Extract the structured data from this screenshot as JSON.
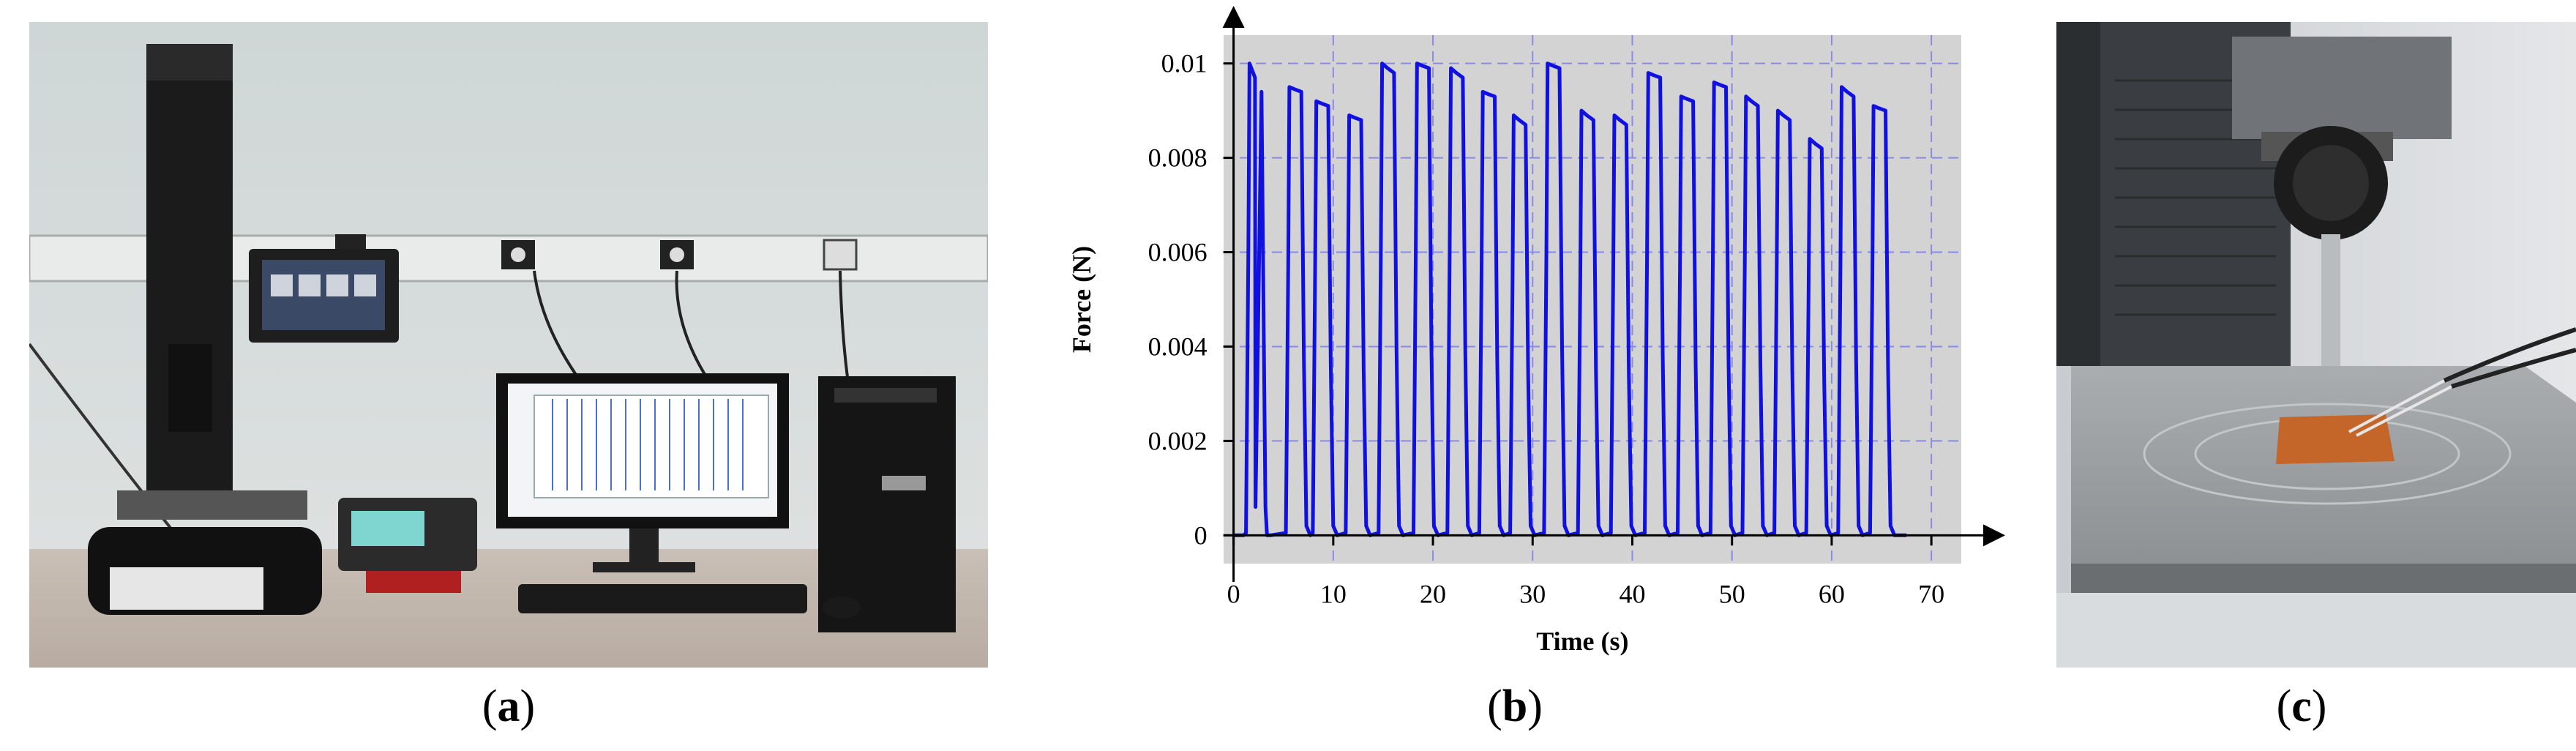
{
  "panels": {
    "a": {
      "caption_open": "(",
      "caption_letter": "a",
      "caption_close": ")"
    },
    "b": {
      "caption_open": "(",
      "caption_letter": "b",
      "caption_close": ")"
    },
    "c": {
      "caption_open": "(",
      "caption_letter": "c",
      "caption_close": ")"
    }
  },
  "colors": {
    "plot_background": "#d3d3d3",
    "grid": "#8a8ae6",
    "series": "#1010e0",
    "axes": "#000000"
  },
  "chart_data": {
    "type": "line",
    "title": "",
    "xlabel": "Time (s)",
    "ylabel": "Force (N)",
    "xlim": [
      -1,
      73
    ],
    "ylim": [
      -0.0006,
      0.0106
    ],
    "xticks": [
      0,
      10,
      20,
      30,
      40,
      50,
      60,
      70
    ],
    "xtick_labels": [
      "0",
      "10",
      "20",
      "30",
      "40",
      "50",
      "60",
      "70"
    ],
    "yticks": [
      0,
      0.002,
      0.004,
      0.006,
      0.008,
      0.01
    ],
    "ytick_labels": [
      "0",
      "0.002",
      "0.004",
      "0.006",
      "0.008",
      "0.01"
    ],
    "grid": true,
    "legend": "none",
    "series": [
      {
        "pulses": [
          {
            "t": 1.6,
            "peak": 0.01,
            "end": 0.0094
          },
          {
            "t": 5.6,
            "peak": 0.0095,
            "end": 0.0094
          },
          {
            "t": 8.3,
            "peak": 0.0092,
            "end": 0.0091
          },
          {
            "t": 11.6,
            "peak": 0.0089,
            "end": 0.0088
          },
          {
            "t": 14.9,
            "peak": 0.01,
            "end": 0.0098
          },
          {
            "t": 18.4,
            "peak": 0.01,
            "end": 0.0099
          },
          {
            "t": 21.8,
            "peak": 0.0099,
            "end": 0.0097
          },
          {
            "t": 25.0,
            "peak": 0.0094,
            "end": 0.0093
          },
          {
            "t": 28.1,
            "peak": 0.0089,
            "end": 0.0087
          },
          {
            "t": 31.5,
            "peak": 0.01,
            "end": 0.0099
          },
          {
            "t": 34.9,
            "peak": 0.009,
            "end": 0.0088
          },
          {
            "t": 38.2,
            "peak": 0.0089,
            "end": 0.0087
          },
          {
            "t": 41.6,
            "peak": 0.0098,
            "end": 0.0097
          },
          {
            "t": 44.9,
            "peak": 0.0093,
            "end": 0.0092
          },
          {
            "t": 48.2,
            "peak": 0.0096,
            "end": 0.0095
          },
          {
            "t": 51.4,
            "peak": 0.0093,
            "end": 0.0091
          },
          {
            "t": 54.6,
            "peak": 0.009,
            "end": 0.0088
          },
          {
            "t": 57.8,
            "peak": 0.0084,
            "end": 0.0082
          },
          {
            "t": 61.0,
            "peak": 0.0095,
            "end": 0.0093
          },
          {
            "t": 64.2,
            "peak": 0.0091,
            "end": 0.009
          }
        ]
      }
    ]
  }
}
